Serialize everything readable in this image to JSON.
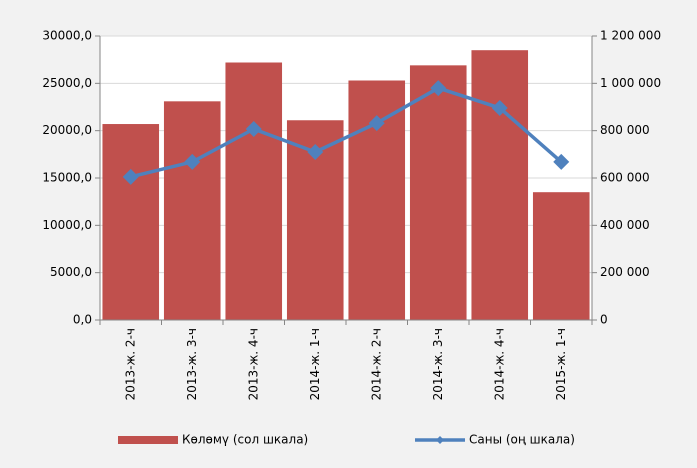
{
  "chart_data": {
    "type": "bar",
    "categories": [
      "2013-ж. 2-ч",
      "2013-ж. 3-ч",
      "2013-ж. 4-ч",
      "2014-ж. 1-ч",
      "2014-ж. 2-ч",
      "2014-ж. 3-ч",
      "2014-ж. 4-ч",
      "2015-ж. 1-ч"
    ],
    "series": [
      {
        "name": "Көлөмү (сол шкала)",
        "type": "bar",
        "color": "#c0504d",
        "values": [
          20700,
          23100,
          27200,
          21100,
          25300,
          26900,
          28500,
          13500
        ]
      },
      {
        "name": "Саны (оң шкала)",
        "type": "line",
        "axis": "y2",
        "color": "#4f81bd",
        "values": [
          605000,
          668000,
          807000,
          710000,
          832000,
          980000,
          896000,
          668000
        ]
      }
    ],
    "ylim": [
      0,
      30000
    ],
    "yticks": [
      {
        "value": 0,
        "label": "0,0"
      },
      {
        "value": 5000,
        "label": "5000,0"
      },
      {
        "value": 10000,
        "label": "10000,0"
      },
      {
        "value": 15000,
        "label": "15000,0"
      },
      {
        "value": 20000,
        "label": "20000,0"
      },
      {
        "value": 25000,
        "label": "25000,0"
      },
      {
        "value": 30000,
        "label": "30000,0"
      }
    ],
    "y2lim": [
      0,
      1200000
    ],
    "y2ticks": [
      0,
      {
        "value": 200000,
        "label": "200 000"
      },
      {
        "value": 400000,
        "label": "400 000"
      },
      {
        "value": 600000,
        "label": "600 000"
      },
      {
        "value": 800000,
        "label": "800 000"
      },
      {
        "value": 1000000,
        "label": "1 000 000"
      },
      {
        "value": 1200000,
        "label": "1 200 000"
      }
    ],
    "grid": true,
    "legend": "bottom"
  }
}
